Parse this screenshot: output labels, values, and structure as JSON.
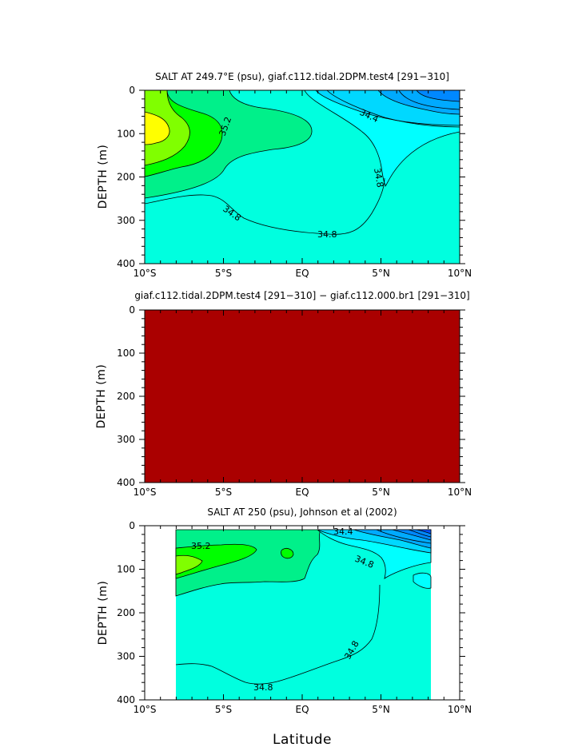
{
  "figure": {
    "xlabel": "Latitude"
  },
  "chart_data": [
    {
      "type": "heatmap",
      "title": "SALT AT 249.7°E (psu), giaf.c112.tidal.2DPM.test4 [291−310]",
      "ylabel": "DEPTH (m)",
      "x_ticks": [
        "10°S",
        "5°S",
        "EQ",
        "5°N",
        "10°N"
      ],
      "y_ticks": [
        "0",
        "100",
        "200",
        "300",
        "400"
      ],
      "xlim": [
        -10,
        10
      ],
      "ylim": [
        400,
        0
      ],
      "contour_labels": [
        "35.2",
        "34.4",
        "34.8",
        "34.8",
        "34.8"
      ]
    },
    {
      "type": "heatmap",
      "title": "giaf.c112.tidal.2DPM.test4 [291−310] − giaf.c112.000.br1 [291−310]",
      "ylabel": "DEPTH (m)",
      "x_ticks": [
        "10°S",
        "5°S",
        "EQ",
        "5°N",
        "10°N"
      ],
      "y_ticks": [
        "0",
        "100",
        "200",
        "300",
        "400"
      ],
      "xlim": [
        -10,
        10
      ],
      "ylim": [
        400,
        0
      ],
      "fill_color": "#AA0000"
    },
    {
      "type": "heatmap",
      "title": "SALT AT 250 (psu), Johnson et al (2002)",
      "ylabel": "DEPTH (m)",
      "x_ticks": [
        "10°S",
        "5°S",
        "EQ",
        "5°N",
        "10°N"
      ],
      "y_ticks": [
        "0",
        "100",
        "200",
        "300",
        "400"
      ],
      "xlim": [
        -10,
        10
      ],
      "ylim": [
        400,
        0
      ],
      "data_extent": {
        "lat": [
          -8,
          8.2
        ],
        "depth": [
          10,
          400
        ]
      },
      "contour_labels": [
        "35.2",
        "34.4",
        "34.8",
        "34.8",
        "34.8"
      ]
    }
  ]
}
